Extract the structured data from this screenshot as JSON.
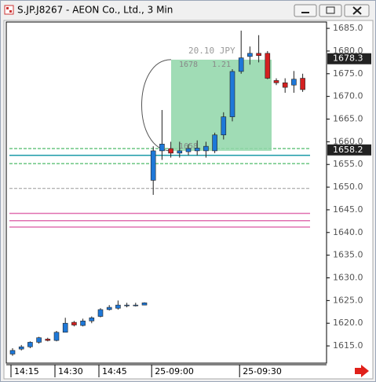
{
  "window_title": "S.JP.J8267 - AEON Co., Ltd., 3 Min",
  "chart_data": {
    "type": "candlestick",
    "categories": [
      "14:15",
      null,
      null,
      null,
      null,
      "14:30",
      null,
      null,
      null,
      null,
      "14:45",
      null,
      null,
      null,
      null,
      null,
      "25-09:00",
      null,
      null,
      null,
      null,
      null,
      null,
      null,
      null,
      null,
      "25-09:30",
      null,
      null,
      null,
      null,
      null,
      null,
      null
    ],
    "open": [
      1613.2,
      1614.3,
      1614.8,
      1615.8,
      1616.5,
      1616.2,
      1618.0,
      1620.2,
      1619.5,
      1620.5,
      1621.5,
      1623.0,
      1623.3,
      1624.0,
      1624.0,
      1624.0,
      1651.5,
      1658.0,
      1658.5,
      1657.5,
      1657.8,
      1658.0,
      1658.0,
      1658.0,
      1661.5,
      1665.5,
      1675.5,
      1678.8,
      1679.5,
      1679.5,
      1673.5,
      1673.0,
      1672.5,
      1674.0
    ],
    "high": [
      1614.5,
      1615.2,
      1616.0,
      1617.0,
      1616.8,
      1618.3,
      1621.2,
      1620.5,
      1621.0,
      1621.5,
      1623.3,
      1624.0,
      1625.0,
      1624.5,
      1624.5,
      1624.6,
      1659.0,
      1667.0,
      1660.0,
      1660.0,
      1659.5,
      1660.3,
      1660.0,
      1662.0,
      1666.5,
      1676.0,
      1684.5,
      1681.0,
      1683.5,
      1680.0,
      1674.0,
      1674.0,
      1675.6,
      1675.0
    ],
    "low": [
      1612.8,
      1614.0,
      1614.5,
      1615.5,
      1616.0,
      1616.0,
      1618.0,
      1619.3,
      1619.3,
      1620.0,
      1621.3,
      1622.8,
      1623.0,
      1623.5,
      1623.7,
      1624.0,
      1648.3,
      1656.0,
      1656.5,
      1656.5,
      1657.0,
      1657.0,
      1656.5,
      1657.5,
      1660.5,
      1664.5,
      1675.0,
      1677.0,
      1677.5,
      1673.8,
      1672.5,
      1670.8,
      1670.8,
      1671.0
    ],
    "close": [
      1614.0,
      1614.8,
      1615.8,
      1616.8,
      1616.2,
      1618.0,
      1620.0,
      1619.6,
      1620.5,
      1621.2,
      1623.0,
      1623.5,
      1624.0,
      1624.0,
      1624.0,
      1624.5,
      1658.0,
      1659.5,
      1657.5,
      1658.0,
      1658.5,
      1658.6,
      1659.0,
      1661.5,
      1665.5,
      1675.5,
      1678.5,
      1679.5,
      1679.0,
      1674.0,
      1673.0,
      1672.0,
      1673.8,
      1671.5
    ],
    "up_color": "#1e78d8",
    "down_color": "#d42020",
    "ylim": [
      1611.2,
      1686.4
    ],
    "yticks": [
      {
        "value": 1615,
        "label": "1615.0"
      },
      {
        "value": 1620,
        "label": "1620.0"
      },
      {
        "value": 1625,
        "label": "1625.0"
      },
      {
        "value": 1630,
        "label": "1630.0"
      },
      {
        "value": 1635,
        "label": "1635.0"
      },
      {
        "value": 1640,
        "label": "1640.0"
      },
      {
        "value": 1645,
        "label": "1645.0"
      },
      {
        "value": 1650,
        "label": "1650.0"
      },
      {
        "value": 1655,
        "label": "1655.0"
      },
      {
        "value": 1660,
        "label": "1660.0"
      },
      {
        "value": 1665,
        "label": "1665.0"
      },
      {
        "value": 1670,
        "label": "1670.0"
      },
      {
        "value": 1675,
        "label": "1675.0"
      },
      {
        "value": 1680,
        "label": "1680.0"
      },
      {
        "value": 1685,
        "label": "1685.0"
      }
    ],
    "levels": [
      {
        "value": 1658.5,
        "color": "#22aa44",
        "dashed": true
      },
      {
        "value": 1657.0,
        "color": "#1a9aa8",
        "dashed": false
      },
      {
        "value": 1655.2,
        "color": "#22aa44",
        "dashed": true
      },
      {
        "value": 1649.7,
        "color": "#999999",
        "dashed": true
      },
      {
        "value": 1644.2,
        "color": "#e070b0",
        "dashed": false
      },
      {
        "value": 1642.6,
        "color": "#e070b0",
        "dashed": false
      },
      {
        "value": 1641.2,
        "color": "#e070b0",
        "dashed": false
      }
    ],
    "price_markers": [
      1678.3,
      1658.2
    ],
    "measure": {
      "top": 1678.1,
      "bottom": 1658,
      "label": "20.10 JPY",
      "top_label": "1678",
      "pct_label": "1.21",
      "bottom_label": "1658",
      "color": "#8fd6a8"
    }
  }
}
